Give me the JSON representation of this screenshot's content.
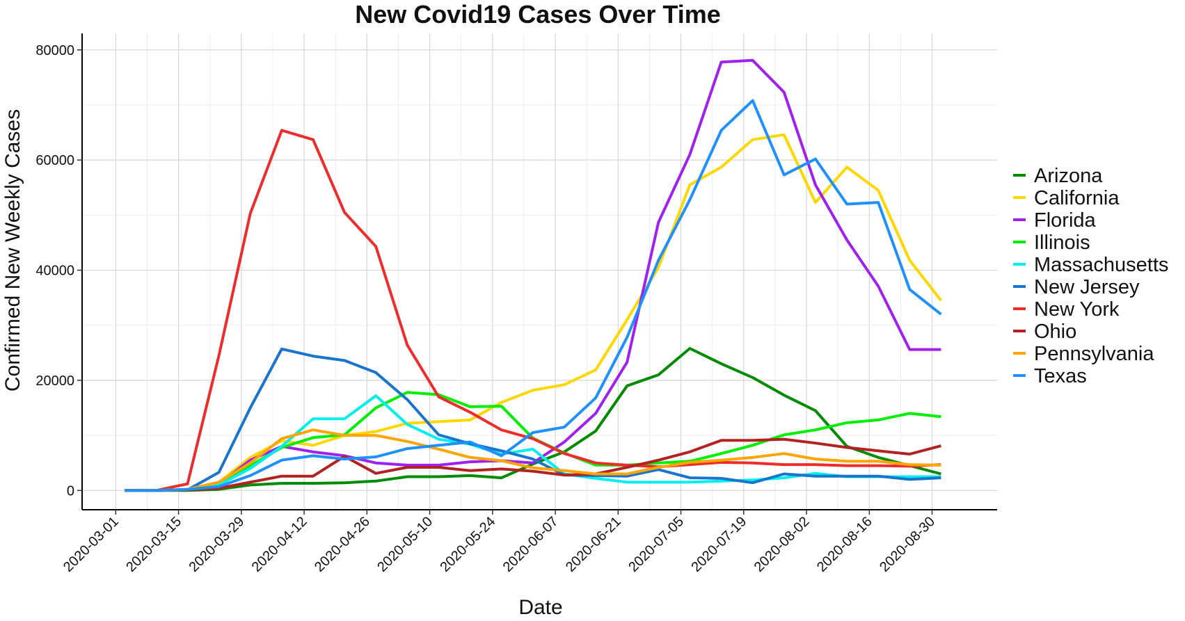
{
  "chart_data": {
    "type": "line",
    "title": "New Covid19 Cases Over Time",
    "xlabel": "Date",
    "ylabel": "Confirmed New Weekly Cases",
    "grid": true,
    "legend_position": "right",
    "ylim": [
      -3500,
      83000
    ],
    "y_ticks": [
      0,
      20000,
      40000,
      60000,
      80000
    ],
    "y_tick_labels": [
      "0",
      "20000",
      "40000",
      "60000",
      "80000"
    ],
    "x_tick_labels": [
      "2020-03-01",
      "2020-03-15",
      "2020-03-29",
      "2020-04-12",
      "2020-04-26",
      "2020-05-10",
      "2020-05-24",
      "2020-06-07",
      "2020-06-21",
      "2020-07-05",
      "2020-07-19",
      "2020-08-02",
      "2020-08-16",
      "2020-08-30"
    ],
    "x_tick_days": [
      0,
      14,
      28,
      42,
      56,
      70,
      84,
      98,
      112,
      126,
      140,
      154,
      168,
      182
    ],
    "x_range_days": [
      -7.5,
      196.5
    ],
    "x_days": [
      2,
      9,
      16,
      23,
      30,
      37,
      44,
      51,
      58,
      65,
      72,
      79,
      86,
      93,
      100,
      107,
      114,
      121,
      128,
      135,
      142,
      149,
      156,
      163,
      170,
      177,
      184
    ],
    "series": [
      {
        "name": "Arizona",
        "color": "#008b00",
        "values": [
          0,
          0,
          0,
          200,
          1000,
          1300,
          1300,
          1400,
          1700,
          2500,
          2500,
          2700,
          2300,
          4800,
          7000,
          10800,
          19000,
          21000,
          25800,
          23000,
          20500,
          17300,
          14500,
          8000,
          6000,
          4500,
          3000
        ]
      },
      {
        "name": "California",
        "color": "#ffd700",
        "values": [
          0,
          0,
          200,
          1500,
          6000,
          9000,
          8200,
          10000,
          10700,
          12200,
          12500,
          12800,
          16000,
          18200,
          19200,
          21900,
          31000,
          40500,
          55500,
          58700,
          63700,
          64600,
          52300,
          58700,
          54500,
          41800,
          34500
        ]
      },
      {
        "name": "Florida",
        "color": "#a020f0",
        "values": [
          0,
          0,
          100,
          1200,
          5500,
          8000,
          7000,
          6300,
          5000,
          4600,
          4600,
          5200,
          5400,
          5000,
          8800,
          14000,
          23300,
          48700,
          61000,
          77800,
          78100,
          72300,
          55500,
          45500,
          37100,
          25600,
          25600
        ]
      },
      {
        "name": "Illinois",
        "color": "#00ee00",
        "values": [
          0,
          0,
          100,
          1000,
          4500,
          7800,
          9600,
          10100,
          15000,
          17800,
          17400,
          15200,
          15300,
          9500,
          6800,
          4600,
          4600,
          5000,
          5300,
          6700,
          8200,
          10100,
          11000,
          12300,
          12800,
          14000,
          13400
        ]
      },
      {
        "name": "Massachusetts",
        "color": "#00eeee",
        "values": [
          0,
          0,
          100,
          1000,
          4000,
          8000,
          13000,
          13000,
          17200,
          12000,
          9300,
          8400,
          6600,
          7500,
          3000,
          2200,
          1500,
          1500,
          1500,
          1700,
          1900,
          2300,
          3100,
          2500,
          2500,
          2500,
          2500
        ]
      },
      {
        "name": "New Jersey",
        "color": "#1874cd",
        "values": [
          0,
          0,
          100,
          3300,
          15000,
          25700,
          24400,
          23600,
          21400,
          16500,
          10100,
          8500,
          7200,
          5700,
          2800,
          2700,
          2600,
          3800,
          2300,
          2200,
          1400,
          3000,
          2600,
          2600,
          2600,
          2000,
          2300
        ]
      },
      {
        "name": "New York",
        "color": "#ee2c2c",
        "values": [
          0,
          0,
          1200,
          24500,
          50300,
          65400,
          63700,
          50500,
          44300,
          26400,
          17000,
          14200,
          11000,
          9400,
          6700,
          5000,
          4600,
          4300,
          4700,
          5100,
          5000,
          4700,
          4700,
          4500,
          4500,
          4400,
          4700
        ]
      },
      {
        "name": "Ohio",
        "color": "#b22222",
        "values": [
          0,
          0,
          100,
          400,
          1500,
          2600,
          2600,
          6200,
          3100,
          4200,
          4200,
          3600,
          3900,
          3500,
          2800,
          3000,
          4200,
          5500,
          7000,
          9100,
          9100,
          9300,
          8600,
          7800,
          7200,
          6600,
          8100
        ]
      },
      {
        "name": "Pennsylvania",
        "color": "#ffa500",
        "values": [
          0,
          0,
          200,
          1500,
          5000,
          9400,
          11000,
          10000,
          10000,
          8900,
          7500,
          6000,
          5400,
          4100,
          3600,
          3000,
          3000,
          4200,
          5100,
          5500,
          6000,
          6700,
          5700,
          5300,
          5300,
          4700,
          4600
        ]
      },
      {
        "name": "Texas",
        "color": "#1e90ff",
        "values": [
          0,
          0,
          200,
          700,
          2700,
          5500,
          6300,
          5700,
          6100,
          7600,
          8200,
          8800,
          6300,
          10500,
          11500,
          16800,
          27800,
          41800,
          52800,
          65400,
          70800,
          57300,
          60200,
          52000,
          52300,
          36500,
          32000
        ]
      }
    ]
  }
}
